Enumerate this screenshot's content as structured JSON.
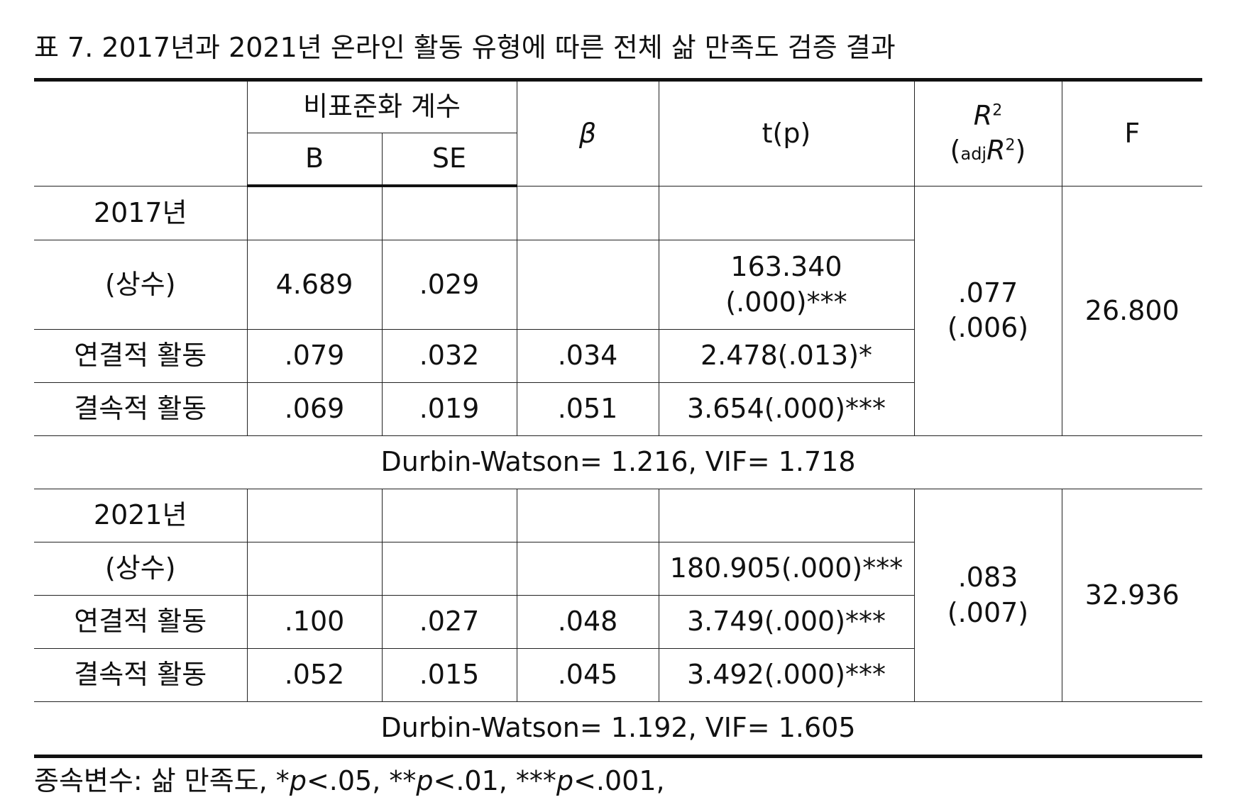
{
  "title": "표 7. 2017년과 2021년 온라인 활동 유형에 따른 전체 삶 만족도 검증 결과",
  "header": {
    "unstandardized": "비표준화 계수",
    "b": "B",
    "se": "SE",
    "beta": "β",
    "tp": "t(p)",
    "r2_letter": "R",
    "r2_exp": "2",
    "adj_open": "(",
    "adj_sub": "adj",
    "adj_letter": "R",
    "adj_exp": "2",
    "adj_close": ")",
    "f": "F"
  },
  "sections": [
    {
      "year": "2017년",
      "const": {
        "label": "(상수)",
        "b": "4.689",
        "se": ".029",
        "beta": "",
        "tp": "163.340\n(.000)***"
      },
      "connected": {
        "label": "연결적 활동",
        "b": ".079",
        "se": ".032",
        "beta": ".034",
        "tp": "2.478(.013)*"
      },
      "lacking": {
        "label": "결속적 활동",
        "b": ".069",
        "se": ".019",
        "beta": ".051",
        "tp": "3.654(.000)***"
      },
      "r2": ".077\n(.006)",
      "f": "26.800",
      "dw": "Durbin-Watson= 1.216, VIF= 1.718"
    },
    {
      "year": "2021년",
      "const": {
        "label": "(상수)",
        "b": "",
        "se": "",
        "beta": "",
        "tp": "180.905(.000)***"
      },
      "connected": {
        "label": "연결적 활동",
        "b": ".100",
        "se": ".027",
        "beta": ".048",
        "tp": "3.749(.000)***"
      },
      "lacking": {
        "label": "결속적 활동",
        "b": ".052",
        "se": ".015",
        "beta": ".045",
        "tp": "3.492(.000)***"
      },
      "r2": ".083\n(.007)",
      "f": "32.936",
      "dw": "Durbin-Watson= 1.192, VIF= 1.605"
    }
  ],
  "footnote": {
    "prefix": "종속변수: 삶 만족도, *",
    "p1": "p",
    "t1": "<.05, **",
    "p2": "p",
    "t2": "<.01, ***",
    "p3": "p",
    "t3": "<.001,"
  }
}
